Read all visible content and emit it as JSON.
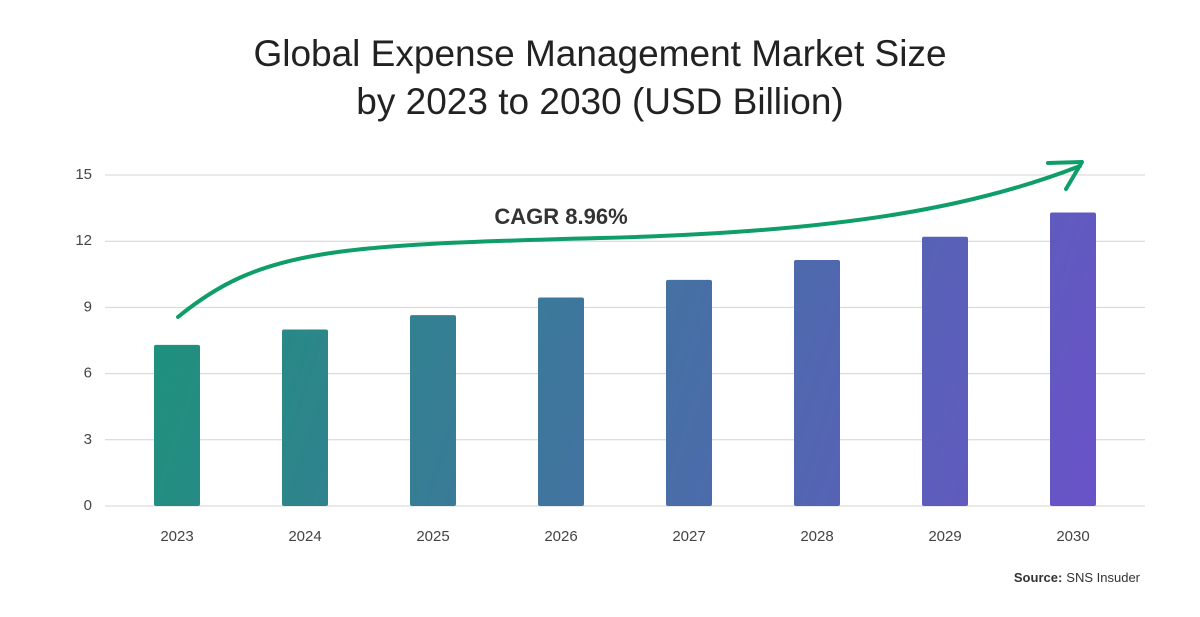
{
  "chart_data": {
    "type": "bar",
    "title_lines": [
      "Global Expense Management Market Size",
      "by 2023 to 2030 (USD Billion)"
    ],
    "categories": [
      "2023",
      "2024",
      "2025",
      "2026",
      "2027",
      "2028",
      "2029",
      "2030"
    ],
    "values": [
      7.3,
      8.0,
      8.65,
      9.45,
      10.25,
      11.15,
      12.2,
      13.3
    ],
    "color_gradient": [
      "#1b9479",
      "#6a52c9"
    ],
    "ylim": [
      0,
      15
    ],
    "yticks": [
      0,
      3,
      6,
      9,
      12,
      15
    ],
    "grid": true,
    "annotation": "CAGR 8.96%",
    "source_label": "Source:",
    "source_text": "SNS Insuder"
  }
}
